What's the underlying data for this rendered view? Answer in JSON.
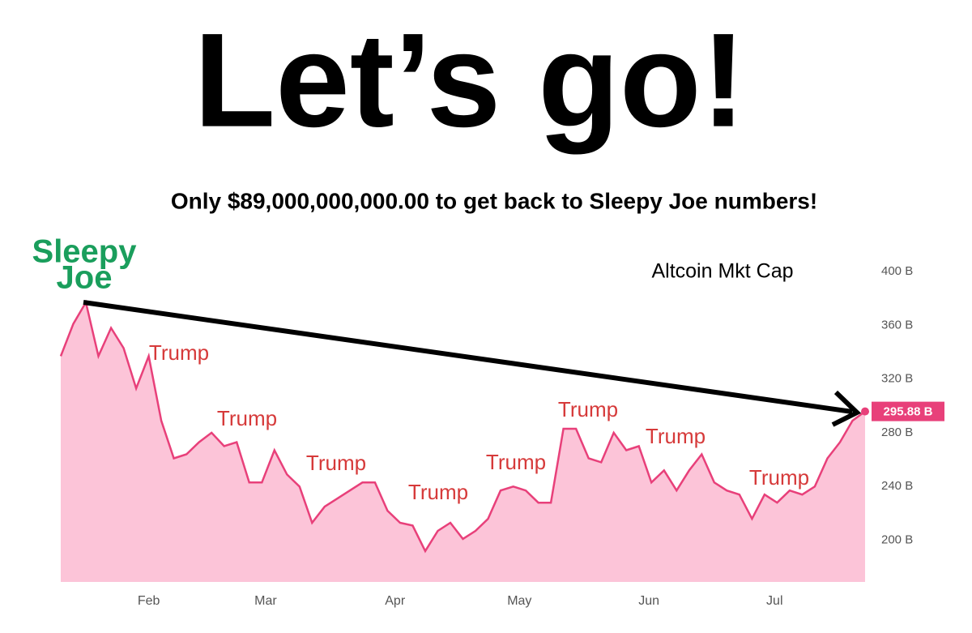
{
  "title": "Let’s go!",
  "subtitle": "Only $89,000,000,000.00 to get back to Sleepy Joe numbers!",
  "callout": [
    "Sleepy",
    "Joe"
  ],
  "chart_data": {
    "type": "area",
    "title": "Altcoin Mkt Cap",
    "series": [
      {
        "name": "Altcoin Mkt Cap",
        "color": "#e8407a",
        "fill": "#fcc4d8",
        "values": [
          337,
          361,
          377,
          337,
          358,
          343,
          313,
          337,
          289,
          261,
          264,
          273,
          280,
          270,
          273,
          243,
          243,
          267,
          249,
          240,
          213,
          225,
          231,
          237,
          243,
          243,
          222,
          213,
          211,
          192,
          207,
          213,
          201,
          207,
          216,
          237,
          240,
          237,
          228,
          228,
          283,
          283,
          261,
          258,
          280,
          267,
          270,
          243,
          252,
          237,
          252,
          264,
          243,
          237,
          234,
          216,
          234,
          228,
          237,
          234,
          240,
          261,
          273,
          289,
          295.88
        ]
      }
    ],
    "price_label": {
      "value": 295.88,
      "label": "295.88 B"
    },
    "xlim": [
      0,
      64
    ],
    "xticks": [
      {
        "value": 7,
        "label": "Feb"
      },
      {
        "value": 16.3,
        "label": "Mar"
      },
      {
        "value": 26.6,
        "label": "Apr"
      },
      {
        "value": 36.5,
        "label": "May"
      },
      {
        "value": 46.8,
        "label": "Jun"
      },
      {
        "value": 56.8,
        "label": "Jul"
      }
    ],
    "ylim": [
      169,
      403
    ],
    "yticks": [
      {
        "value": 200,
        "label": "200 B"
      },
      {
        "value": 240,
        "label": "240 B"
      },
      {
        "value": 280,
        "label": "280 B"
      },
      {
        "value": 320,
        "label": "320 B"
      },
      {
        "value": 360,
        "label": "360 B"
      },
      {
        "value": 400,
        "label": "400 B"
      }
    ],
    "annotations": [
      "Trump",
      "Trump",
      "Trump",
      "Trump",
      "Trump",
      "Trump",
      "Trump",
      "Trump"
    ]
  }
}
